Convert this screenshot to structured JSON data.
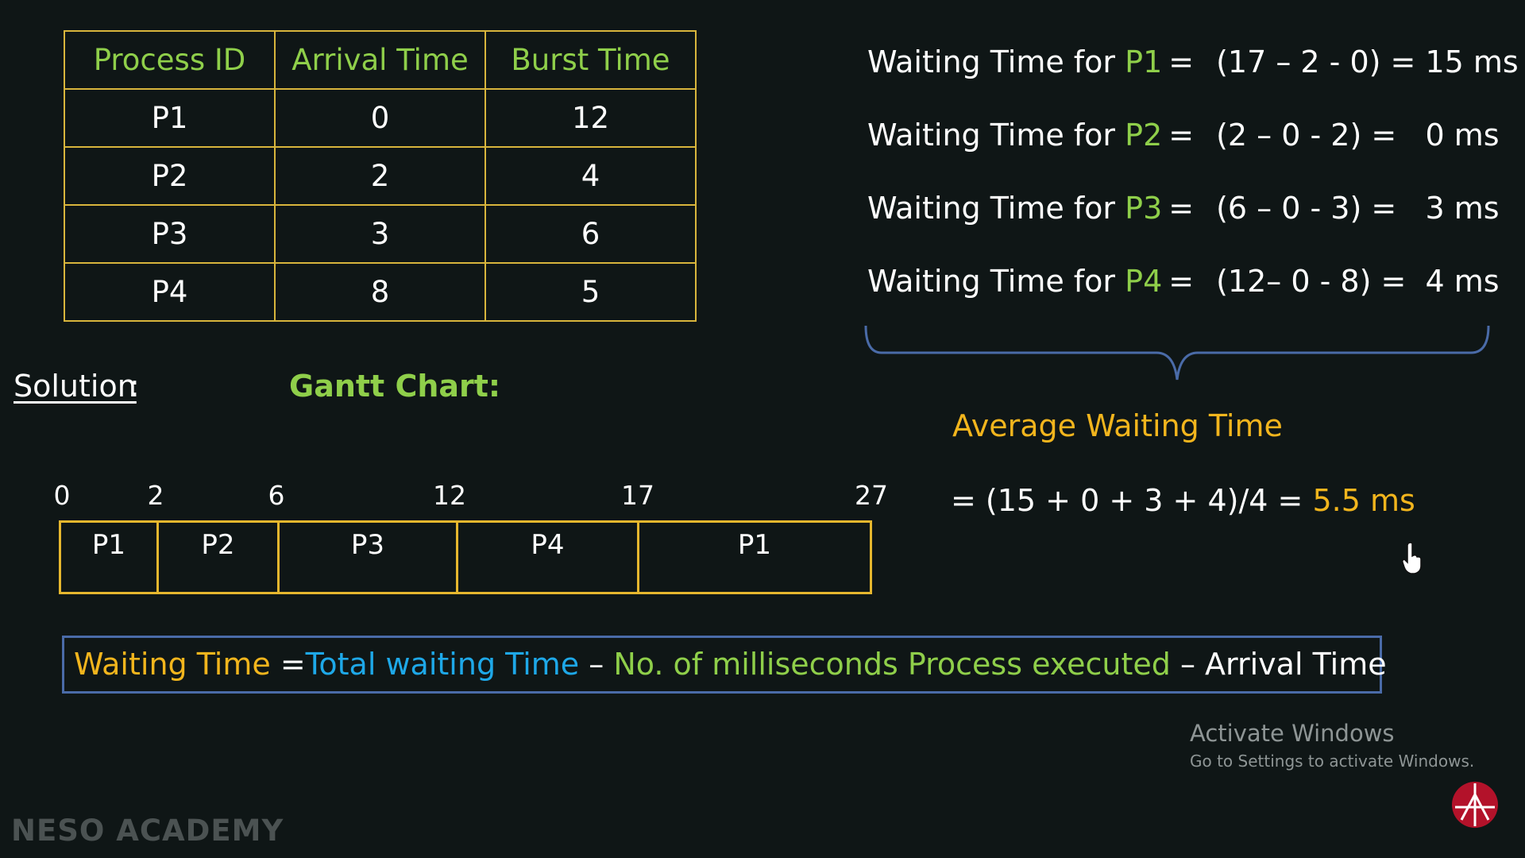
{
  "process_table": {
    "headers": [
      "Process ID",
      "Arrival Time",
      "Burst Time"
    ],
    "rows": [
      [
        "P1",
        "0",
        "12"
      ],
      [
        "P2",
        "2",
        "4"
      ],
      [
        "P3",
        "3",
        "6"
      ],
      [
        "P4",
        "8",
        "5"
      ]
    ]
  },
  "waiting_times": [
    {
      "prefix": "Waiting Time for",
      "pid": "P1",
      "eq": "=",
      "expr": "(17 – 2 - 0) = 15 ms"
    },
    {
      "prefix": "Waiting Time for",
      "pid": "P2",
      "eq": "=",
      "expr": "(2 – 0 - 2) =   0 ms"
    },
    {
      "prefix": "Waiting Time for",
      "pid": "P3",
      "eq": "=",
      "expr": "(6 – 0 - 3) =   3 ms"
    },
    {
      "prefix": "Waiting Time for",
      "pid": "P4",
      "eq": "=",
      "expr": "(12– 0 - 8) =  4 ms"
    }
  ],
  "labels": {
    "solution": "Solution",
    "solution_colon": ":",
    "gantt": "Gantt Chart:"
  },
  "gantt": {
    "times": [
      "0",
      "2",
      "6",
      "12",
      "17",
      "27"
    ],
    "blocks": [
      {
        "label": "P1",
        "start": 0,
        "end": 2
      },
      {
        "label": "P2",
        "start": 2,
        "end": 6
      },
      {
        "label": "P3",
        "start": 6,
        "end": 12
      },
      {
        "label": "P4",
        "start": 12,
        "end": 17
      },
      {
        "label": "P1",
        "start": 17,
        "end": 27
      }
    ]
  },
  "average": {
    "title": "Average Waiting Time",
    "formula": "= (15 + 0 + 3 + 4)/4 = ",
    "result": "5.5 ms"
  },
  "formula_box": {
    "waiting_time": "Waiting Time",
    "equals": " =",
    "total": "Total waiting Time",
    "dash1": " – ",
    "ms_executed": "No. of milliseconds Process executed",
    "dash2": " – ",
    "arrival": "Arrival Time"
  },
  "watermark": {
    "activate_title": "Activate Windows",
    "activate_sub": "Go to Settings to activate Windows.",
    "brand": "NESO ACADEMY"
  },
  "colors": {
    "background": "#0f1616",
    "table_border": "#d8b53c",
    "green": "#8fcf4a",
    "orange": "#f2b51d",
    "blue": "#1ea8e8",
    "box_border": "#4a6ba8"
  }
}
